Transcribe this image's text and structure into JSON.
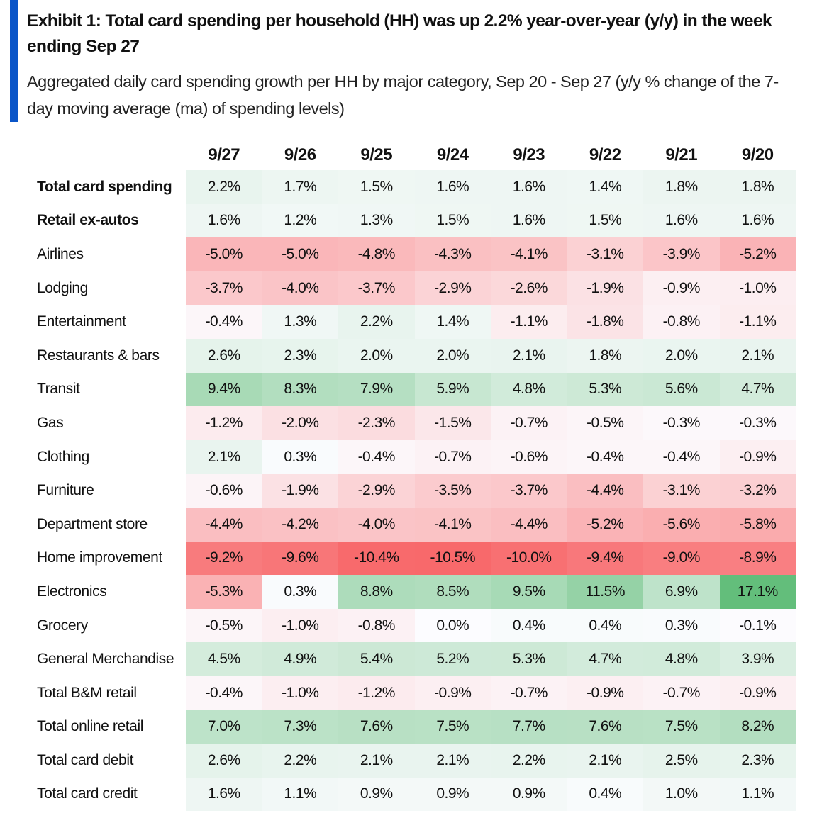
{
  "title": "Exhibit 1: Total card spending per household (HH) was up 2.2% year-over-year (y/y) in the week ending Sep 27",
  "subtitle": "Aggregated daily card spending growth per HH by major category, Sep 20 - Sep 27 (y/y % change of the 7-day moving average (ma) of spending levels)",
  "colors": {
    "accent": "#0a55c8",
    "neg": "#F8696B",
    "mid": "#FCFCFF",
    "pos": "#63BE7B"
  },
  "chart_data": {
    "type": "heatmap",
    "columns": [
      "9/27",
      "9/26",
      "9/25",
      "9/24",
      "9/23",
      "9/22",
      "9/21",
      "9/20"
    ],
    "rows": [
      {
        "label": "Total card spending",
        "bold": true,
        "values": [
          2.2,
          1.7,
          1.5,
          1.6,
          1.6,
          1.4,
          1.8,
          1.8
        ]
      },
      {
        "label": "Retail ex-autos",
        "bold": true,
        "values": [
          1.6,
          1.2,
          1.3,
          1.5,
          1.6,
          1.5,
          1.6,
          1.6
        ]
      },
      {
        "label": "Airlines",
        "values": [
          -5.0,
          -5.0,
          -4.8,
          -4.3,
          -4.1,
          -3.1,
          -3.9,
          -5.2
        ]
      },
      {
        "label": "Lodging",
        "values": [
          -3.7,
          -4.0,
          -3.7,
          -2.9,
          -2.6,
          -1.9,
          -0.9,
          -1.0
        ]
      },
      {
        "label": "Entertainment",
        "values": [
          -0.4,
          1.3,
          2.2,
          1.4,
          -1.1,
          -1.8,
          -0.8,
          -1.1
        ]
      },
      {
        "label": "Restaurants & bars",
        "values": [
          2.6,
          2.3,
          2.0,
          2.0,
          2.1,
          1.8,
          2.0,
          2.1
        ]
      },
      {
        "label": "Transit",
        "values": [
          9.4,
          8.3,
          7.9,
          5.9,
          4.8,
          5.3,
          5.6,
          4.7
        ]
      },
      {
        "label": "Gas",
        "values": [
          -1.2,
          -2.0,
          -2.3,
          -1.5,
          -0.7,
          -0.5,
          -0.3,
          -0.3
        ]
      },
      {
        "label": "Clothing",
        "values": [
          2.1,
          0.3,
          -0.4,
          -0.7,
          -0.6,
          -0.4,
          -0.4,
          -0.9
        ]
      },
      {
        "label": "Furniture",
        "values": [
          -0.6,
          -1.9,
          -2.9,
          -3.5,
          -3.7,
          -4.4,
          -3.1,
          -3.2
        ]
      },
      {
        "label": "Department store",
        "values": [
          -4.4,
          -4.2,
          -4.0,
          -4.1,
          -4.4,
          -5.2,
          -5.6,
          -5.8
        ]
      },
      {
        "label": "Home improvement",
        "values": [
          -9.2,
          -9.6,
          -10.4,
          -10.5,
          -10.0,
          -9.4,
          -9.0,
          -8.9
        ]
      },
      {
        "label": "Electronics",
        "values": [
          -5.3,
          0.3,
          8.8,
          8.5,
          9.5,
          11.5,
          6.9,
          17.1
        ]
      },
      {
        "label": "Grocery",
        "values": [
          -0.5,
          -1.0,
          -0.8,
          0.0,
          0.4,
          0.4,
          0.3,
          -0.1
        ]
      },
      {
        "label": "General Merchandise",
        "values": [
          4.5,
          4.9,
          5.4,
          5.2,
          5.3,
          4.7,
          4.8,
          3.9
        ]
      },
      {
        "label": "Total B&M retail",
        "values": [
          -0.4,
          -1.0,
          -1.2,
          -0.9,
          -0.7,
          -0.9,
          -0.7,
          -0.9
        ]
      },
      {
        "label": "Total online retail",
        "values": [
          7.0,
          7.3,
          7.6,
          7.5,
          7.7,
          7.6,
          7.5,
          8.2
        ]
      },
      {
        "label": "Total card debit",
        "values": [
          2.6,
          2.2,
          2.1,
          2.1,
          2.2,
          2.1,
          2.5,
          2.3
        ]
      },
      {
        "label": "Total card credit",
        "values": [
          1.6,
          1.1,
          0.9,
          0.9,
          0.9,
          0.4,
          1.0,
          1.1
        ]
      }
    ],
    "unit": "%",
    "color_range": [
      -10.5,
      0,
      17.1
    ]
  }
}
